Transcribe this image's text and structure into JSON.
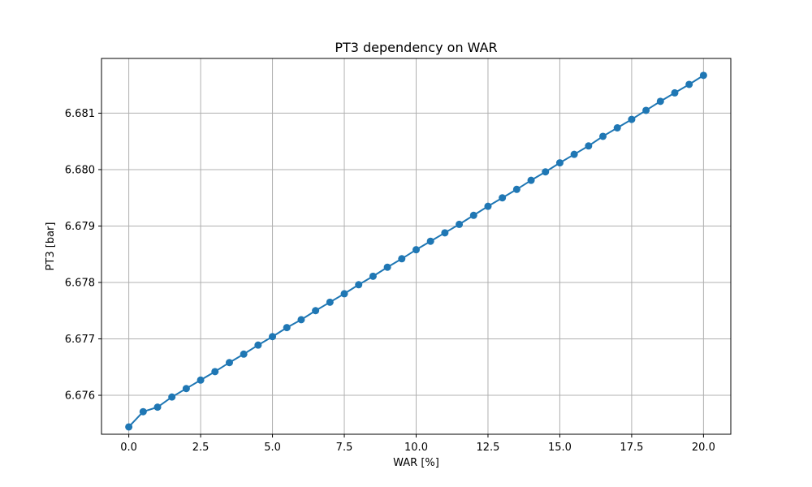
{
  "chart_data": {
    "type": "line",
    "title": "PT3 dependency on WAR",
    "xlabel": "WAR [%]",
    "ylabel": "PT3 [bar]",
    "xlim": [
      -0.95,
      20.95
    ],
    "ylim": [
      6.67531,
      6.68197
    ],
    "grid": true,
    "marker": "circle",
    "xticks": [
      0.0,
      2.5,
      5.0,
      7.5,
      10.0,
      12.5,
      15.0,
      17.5,
      20.0
    ],
    "xtick_labels": [
      "0.0",
      "2.5",
      "5.0",
      "7.5",
      "10.0",
      "12.5",
      "15.0",
      "17.5",
      "20.0"
    ],
    "yticks": [
      6.676,
      6.677,
      6.678,
      6.679,
      6.68,
      6.681
    ],
    "ytick_labels": [
      "6.676",
      "6.677",
      "6.678",
      "6.679",
      "6.680",
      "6.681"
    ],
    "series": [
      {
        "color": "#1f77b4",
        "x": [
          0.0,
          0.5,
          1.0,
          1.5,
          2.0,
          2.5,
          3.0,
          3.5,
          4.0,
          4.5,
          5.0,
          5.5,
          6.0,
          6.5,
          7.0,
          7.5,
          8.0,
          8.5,
          9.0,
          9.5,
          10.0,
          10.5,
          11.0,
          11.5,
          12.0,
          12.5,
          13.0,
          13.5,
          14.0,
          14.5,
          15.0,
          15.5,
          16.0,
          16.5,
          17.0,
          17.5,
          18.0,
          18.5,
          19.0,
          19.5,
          20.0
        ],
        "y": [
          6.67544,
          6.67571,
          6.67579,
          6.67597,
          6.67612,
          6.67627,
          6.67642,
          6.67658,
          6.67673,
          6.67689,
          6.67704,
          6.6772,
          6.67734,
          6.6775,
          6.67765,
          6.6778,
          6.67796,
          6.67811,
          6.67827,
          6.67842,
          6.67858,
          6.67873,
          6.67888,
          6.67903,
          6.67919,
          6.67935,
          6.6795,
          6.67965,
          6.67981,
          6.67996,
          6.68012,
          6.68027,
          6.68042,
          6.68059,
          6.68074,
          6.68089,
          6.68105,
          6.68121,
          6.68136,
          6.68151,
          6.68167
        ]
      }
    ]
  }
}
